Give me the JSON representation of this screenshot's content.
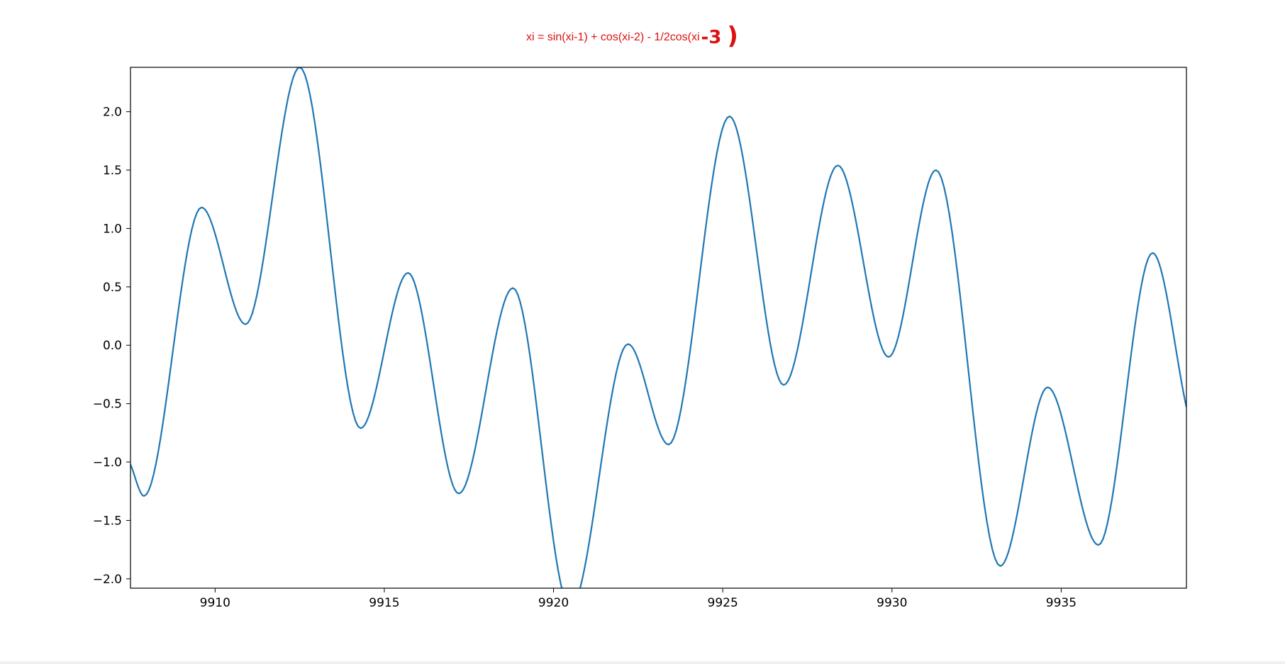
{
  "chart_data": {
    "type": "line",
    "title": "xi = sin(xi-1) + cos(xi-2) - 1/2cos(xi",
    "title_handwritten_suffix": "-3",
    "title_handwritten_paren": ")",
    "xlabel": "",
    "ylabel": "",
    "xlim": [
      9907.5,
      9938.7
    ],
    "ylim": [
      -2.08,
      2.38
    ],
    "xticks": [
      9910,
      9915,
      9920,
      9925,
      9930,
      9935
    ],
    "xtick_labels": [
      "9910",
      "9915",
      "9920",
      "9925",
      "9930",
      "9935"
    ],
    "yticks": [
      2.0,
      1.5,
      1.0,
      0.5,
      0.0,
      -0.5,
      -1.0,
      -1.5,
      -2.0
    ],
    "ytick_labels": [
      "2.0",
      "1.5",
      "1.0",
      "0.5",
      "0.0",
      "−0.5",
      "−1.0",
      "−1.5",
      "−2.0"
    ],
    "grid": false,
    "series": [
      {
        "color": "#1f77b4",
        "points": [
          [
            9907.5,
            -1.02
          ],
          [
            9907.9,
            -1.29
          ],
          [
            9909.6,
            1.18
          ],
          [
            9910.9,
            0.18
          ],
          [
            9912.5,
            2.38
          ],
          [
            9914.3,
            -0.71
          ],
          [
            9915.7,
            0.62
          ],
          [
            9917.2,
            -1.27
          ],
          [
            9918.8,
            0.49
          ],
          [
            9920.5,
            -2.25
          ],
          [
            9922.2,
            0.01
          ],
          [
            9923.4,
            -0.85
          ],
          [
            9925.2,
            1.96
          ],
          [
            9926.8,
            -0.34
          ],
          [
            9928.4,
            1.54
          ],
          [
            9929.9,
            -0.1
          ],
          [
            9931.3,
            1.5
          ],
          [
            9933.2,
            -1.89
          ],
          [
            9934.6,
            -0.36
          ],
          [
            9936.1,
            -1.71
          ],
          [
            9937.7,
            0.79
          ],
          [
            9938.7,
            -0.53
          ]
        ]
      }
    ],
    "colors": {
      "line": "#1f77b4",
      "title": "#dd1111",
      "axes": "#000000"
    }
  }
}
